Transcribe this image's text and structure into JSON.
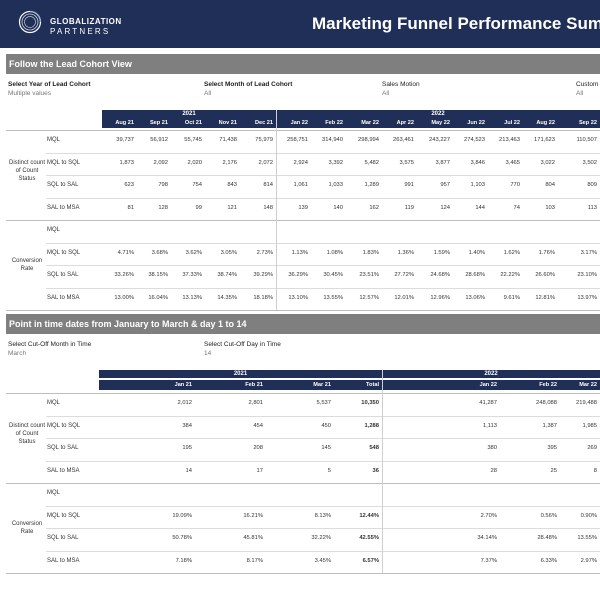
{
  "header": {
    "logo_line1": "GLOBALIZATION",
    "logo_line2": "PARTNERS",
    "title": "Marketing Funnel Performance Summ",
    "bg": "#1f2f57"
  },
  "section1": {
    "title": "Follow the Lead Cohort View",
    "filters": [
      {
        "label": "Select Year of Lead Cohort",
        "value": "Multiple values"
      },
      {
        "label": "Select Month of Lead Cohort",
        "value": "All"
      },
      {
        "label": "Sales Motion",
        "value": "All"
      },
      {
        "label": "Custom",
        "value": "All"
      }
    ],
    "year_groups": [
      "2021",
      "2022"
    ],
    "columns": [
      "Aug 21",
      "Sep 21",
      "Oct 21",
      "Nov 21",
      "Dec 21",
      "Jan 22",
      "Feb 22",
      "Mar 22",
      "Apr 22",
      "May 22",
      "Jun 22",
      "Jul 22",
      "Aug 22",
      "Sep 22"
    ],
    "group_labels": {
      "count": "Distinct count of Count Status",
      "rate": "Conversion Rate"
    },
    "count_rows": [
      {
        "label": "MQL",
        "values": [
          "39,737",
          "56,912",
          "55,745",
          "71,438",
          "75,979",
          "258,751",
          "314,940",
          "298,994",
          "263,461",
          "243,227",
          "274,523",
          "213,463",
          "171,623",
          "110,507"
        ]
      },
      {
        "label": "MQL to SQL",
        "values": [
          "1,873",
          "2,092",
          "2,020",
          "2,176",
          "2,072",
          "2,924",
          "3,392",
          "5,482",
          "3,575",
          "3,877",
          "3,846",
          "3,465",
          "3,022",
          "3,502"
        ]
      },
      {
        "label": "SQL to SAL",
        "values": [
          "623",
          "798",
          "754",
          "843",
          "814",
          "1,061",
          "1,033",
          "1,289",
          "991",
          "957",
          "1,103",
          "770",
          "804",
          "809"
        ]
      },
      {
        "label": "SAL to MSA",
        "values": [
          "81",
          "128",
          "99",
          "121",
          "148",
          "139",
          "140",
          "162",
          "119",
          "124",
          "144",
          "74",
          "103",
          "113"
        ]
      }
    ],
    "rate_rows": [
      {
        "label": "MQL",
        "values": [
          "",
          "",
          "",
          "",
          "",
          "",
          "",
          "",
          "",
          "",
          "",
          "",
          "",
          ""
        ]
      },
      {
        "label": "MQL to SQL",
        "values": [
          "4.71%",
          "3.68%",
          "3.62%",
          "3.05%",
          "2.73%",
          "1.13%",
          "1.08%",
          "1.83%",
          "1.36%",
          "1.59%",
          "1.40%",
          "1.62%",
          "1.76%",
          "3.17%"
        ]
      },
      {
        "label": "SQL to SAL",
        "values": [
          "33.26%",
          "38.15%",
          "37.33%",
          "38.74%",
          "39.29%",
          "36.29%",
          "30.45%",
          "23.51%",
          "27.72%",
          "24.68%",
          "28.68%",
          "22.22%",
          "26.60%",
          "23.10%"
        ]
      },
      {
        "label": "SAL to MSA",
        "values": [
          "13.00%",
          "16.04%",
          "13.13%",
          "14.35%",
          "18.18%",
          "13.10%",
          "13.55%",
          "12.57%",
          "12.01%",
          "12.96%",
          "13.06%",
          "9.61%",
          "12.81%",
          "13.97%"
        ]
      }
    ]
  },
  "section2": {
    "title": "Point in time dates from January to March & day 1 to 14",
    "filters": [
      {
        "label": "Select Cut-Off Month in Time",
        "value": "March"
      },
      {
        "label": "Select Cut-Off Day in Time",
        "value": "14"
      }
    ],
    "year_groups": [
      "2021",
      "2022"
    ],
    "columns": [
      "Jan 21",
      "Feb 21",
      "Mar 21",
      "Total",
      "Jan 22",
      "Feb 22",
      "Mar 22"
    ],
    "group_labels": {
      "count": "Distinct count of Count Status",
      "rate": "Conversion Rate"
    },
    "count_rows": [
      {
        "label": "MQL",
        "values": [
          "2,012",
          "2,801",
          "5,537",
          "10,350",
          "41,287",
          "248,088",
          "219,488"
        ]
      },
      {
        "label": "MQL to SQL",
        "values": [
          "384",
          "454",
          "450",
          "1,288",
          "1,113",
          "1,387",
          "1,985"
        ]
      },
      {
        "label": "SQL to SAL",
        "values": [
          "195",
          "208",
          "145",
          "548",
          "380",
          "395",
          "269"
        ]
      },
      {
        "label": "SAL to MSA",
        "values": [
          "14",
          "17",
          "5",
          "36",
          "28",
          "25",
          "8"
        ]
      }
    ],
    "rate_rows": [
      {
        "label": "MQL",
        "values": [
          "",
          "",
          "",
          "",
          "",
          "",
          ""
        ]
      },
      {
        "label": "MQL to SQL",
        "values": [
          "19.09%",
          "16.21%",
          "8.13%",
          "12.44%",
          "2.70%",
          "0.56%",
          "0.90%"
        ]
      },
      {
        "label": "SQL to SAL",
        "values": [
          "50.78%",
          "45.81%",
          "32.22%",
          "42.55%",
          "34.14%",
          "28.48%",
          "13.55%"
        ]
      },
      {
        "label": "SAL to MSA",
        "values": [
          "7.18%",
          "8.17%",
          "3.45%",
          "6.57%",
          "7.37%",
          "6.33%",
          "2.97%"
        ]
      }
    ]
  }
}
